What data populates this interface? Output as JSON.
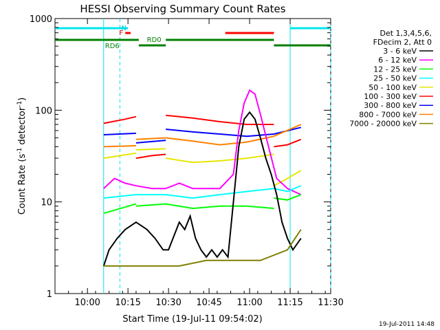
{
  "chart_data": {
    "type": "line",
    "title": "HESSI Observing Summary Count Rates",
    "xlabel": "Start Time (19-Jul-11 09:54:02)",
    "ylabel_main": "Count Rate (s",
    "ylabel_sup1": "-1",
    "ylabel_mid": " detector",
    "ylabel_sup2": "-1",
    "ylabel_end": ")",
    "yscale": "log",
    "ylim": [
      1,
      1000
    ],
    "xlim_minutes": [
      -6,
      96
    ],
    "x_start_minute_of_day": 594,
    "x_ticks": [
      "10:00",
      "10:15",
      "10:30",
      "10:45",
      "11:00",
      "11:15",
      "11:30"
    ],
    "x_tick_minutes": [
      6,
      21,
      36,
      51,
      66,
      81,
      96
    ],
    "y_ticks": [
      "1",
      "10",
      "100",
      "1000"
    ],
    "y_tick_values": [
      1,
      10,
      100,
      1000
    ],
    "timestamp": "19-Jul-2011 14:48",
    "legend_header": [
      "Det 1,3,4,5,6,",
      "FDecim 2, Att 0"
    ],
    "legend": [
      {
        "name": "3 - 6 keV",
        "color": "#000000"
      },
      {
        "name": "6 - 12 keV",
        "color": "#ff00ff"
      },
      {
        "name": "12 - 25 keV",
        "color": "#00ff00"
      },
      {
        "name": "25 - 50 keV",
        "color": "#00ffff"
      },
      {
        "name": "50 - 100 keV",
        "color": "#e6e600"
      },
      {
        "name": "100 - 300 keV",
        "color": "#ff0000"
      },
      {
        "name": "300 - 800 keV",
        "color": "#0000ff"
      },
      {
        "name": "800 - 7000 keV",
        "color": "#ff8000"
      },
      {
        "name": "7000 - 20000 keV",
        "color": "#808000"
      }
    ],
    "flag_labels": {
      "night": "N",
      "flare": "F",
      "rd0": "RD0",
      "rd6": "RD6"
    },
    "night_intervals_minutes": [
      [
        -6,
        21
      ],
      [
        81,
        96
      ]
    ],
    "night_line_minutes": [
      18,
      81,
      96
    ],
    "flare_intervals_minutes": [
      [
        20,
        22
      ],
      [
        57,
        75
      ]
    ],
    "rd0_intervals_minutes": [
      [
        -6,
        25
      ],
      [
        35,
        75
      ],
      [
        75,
        96
      ]
    ],
    "rd6_intervals_minutes": [
      [
        25,
        35
      ]
    ],
    "series": [
      {
        "name": "100 - 300 keV",
        "color": "#ff0000",
        "segments": [
          {
            "x": [
              12,
              20,
              24
            ],
            "y": [
              72,
              80,
              85
            ]
          },
          {
            "x": [
              24,
              30,
              35
            ],
            "y": [
              30,
              32,
              33
            ]
          },
          {
            "x": [
              35,
              45,
              55,
              65,
              75
            ],
            "y": [
              88,
              82,
              75,
              70,
              70
            ]
          },
          {
            "x": [
              75,
              80,
              85
            ],
            "y": [
              40,
              42,
              48
            ]
          }
        ]
      },
      {
        "name": "300 - 800 keV",
        "color": "#0000ff",
        "segments": [
          {
            "x": [
              12,
              24
            ],
            "y": [
              54,
              56
            ]
          },
          {
            "x": [
              24,
              35
            ],
            "y": [
              44,
              47
            ]
          },
          {
            "x": [
              35,
              45,
              55,
              65,
              75,
              85
            ],
            "y": [
              62,
              58,
              55,
              52,
              55,
              65
            ]
          }
        ]
      },
      {
        "name": "800 - 7000 keV",
        "color": "#ff8000",
        "segments": [
          {
            "x": [
              12,
              24
            ],
            "y": [
              40,
              41
            ]
          },
          {
            "x": [
              24,
              35
            ],
            "y": [
              48,
              50
            ]
          },
          {
            "x": [
              35,
              45,
              55,
              65,
              75,
              85
            ],
            "y": [
              50,
              46,
              42,
              45,
              52,
              70
            ]
          }
        ]
      },
      {
        "name": "50 - 100 keV",
        "color": "#e6e600",
        "segments": [
          {
            "x": [
              12,
              24
            ],
            "y": [
              30,
              34
            ]
          },
          {
            "x": [
              24,
              35
            ],
            "y": [
              37,
              38
            ]
          },
          {
            "x": [
              35,
              45,
              55,
              65,
              75
            ],
            "y": [
              30,
              27,
              28,
              30,
              33
            ]
          },
          {
            "x": [
              75,
              80,
              85
            ],
            "y": [
              15,
              18,
              22
            ]
          }
        ]
      },
      {
        "name": "6 - 12 keV",
        "color": "#ff00ff",
        "segments": [
          {
            "x": [
              12,
              16,
              20,
              24,
              30,
              35
            ],
            "y": [
              14,
              18,
              16,
              15,
              14,
              14
            ]
          },
          {
            "x": [
              35,
              40,
              45,
              55,
              60,
              62,
              64,
              66,
              68,
              70,
              73,
              76,
              80,
              85
            ],
            "y": [
              14,
              16,
              14,
              14,
              20,
              60,
              120,
              165,
              150,
              90,
              40,
              18,
              14,
              12
            ]
          }
        ]
      },
      {
        "name": "25 - 50 keV",
        "color": "#00ffff",
        "segments": [
          {
            "x": [
              12,
              24,
              35,
              45,
              55,
              65,
              75,
              80,
              85
            ],
            "y": [
              11,
              12,
              12,
              11,
              12,
              13,
              14,
              13,
              15
            ]
          }
        ]
      },
      {
        "name": "12 - 25 keV",
        "color": "#00ff00",
        "segments": [
          {
            "x": [
              12,
              24
            ],
            "y": [
              7.5,
              9.5
            ]
          },
          {
            "x": [
              24,
              35,
              45,
              55,
              65,
              75
            ],
            "y": [
              9,
              9.5,
              8.5,
              9,
              9,
              8.5
            ]
          },
          {
            "x": [
              75,
              80,
              85
            ],
            "y": [
              11,
              10.5,
              12
            ]
          }
        ]
      },
      {
        "name": "3 - 6 keV",
        "color": "#000000",
        "segments": [
          {
            "x": [
              12,
              14,
              17,
              20,
              24,
              28,
              31,
              34,
              36,
              40,
              42,
              44,
              46,
              48,
              50,
              52,
              54,
              56,
              58,
              60,
              62,
              64,
              66,
              68,
              70,
              72,
              74,
              76,
              78,
              80,
              82,
              85
            ],
            "y": [
              2,
              3,
              4,
              5,
              6,
              5,
              4,
              3,
              3,
              6,
              5,
              7,
              4,
              3,
              2.5,
              3,
              2.5,
              3,
              2.5,
              10,
              40,
              80,
              95,
              80,
              50,
              30,
              20,
              12,
              6,
              4,
              3,
              4
            ]
          }
        ]
      },
      {
        "name": "7000 - 20000 keV",
        "color": "#808000",
        "segments": [
          {
            "x": [
              12,
              20,
              30,
              40,
              50,
              60,
              70,
              80,
              85
            ],
            "y": [
              2,
              2,
              2,
              2,
              2.3,
              2.3,
              2.3,
              3,
              5
            ]
          }
        ]
      }
    ]
  }
}
